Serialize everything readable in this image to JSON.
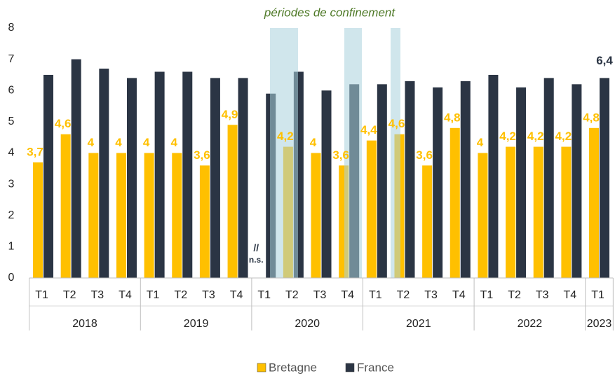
{
  "chart_data": {
    "type": "bar",
    "annotation": "périodes de confinement",
    "categories": [
      {
        "quarter": "T1",
        "year": "2018"
      },
      {
        "quarter": "T2",
        "year": null
      },
      {
        "quarter": "T3",
        "year": null
      },
      {
        "quarter": "T4",
        "year": null
      },
      {
        "quarter": "T1",
        "year": "2019"
      },
      {
        "quarter": "T2",
        "year": null
      },
      {
        "quarter": "T3",
        "year": null
      },
      {
        "quarter": "T4",
        "year": null
      },
      {
        "quarter": "T1",
        "year": "2020"
      },
      {
        "quarter": "T2",
        "year": null
      },
      {
        "quarter": "T3",
        "year": null
      },
      {
        "quarter": "T4",
        "year": null
      },
      {
        "quarter": "T1",
        "year": "2021"
      },
      {
        "quarter": "T2",
        "year": null
      },
      {
        "quarter": "T3",
        "year": null
      },
      {
        "quarter": "T4",
        "year": null
      },
      {
        "quarter": "T1",
        "year": "2022"
      },
      {
        "quarter": "T2",
        "year": null
      },
      {
        "quarter": "T3",
        "year": null
      },
      {
        "quarter": "T4",
        "year": null
      },
      {
        "quarter": "T1",
        "year": "2023"
      }
    ],
    "series": [
      {
        "name": "Bretagne",
        "color": "#ffc000",
        "values": [
          3.7,
          4.6,
          4,
          4,
          4,
          4,
          3.6,
          4.9,
          null,
          4.2,
          4,
          3.6,
          4.4,
          4.6,
          3.6,
          4.8,
          4,
          4.2,
          4.2,
          4.2,
          4.8
        ],
        "value_labels": [
          "3,7",
          "4,6",
          "4",
          "4",
          "4",
          "4",
          "3,6",
          "4,9",
          [
            "//",
            "n.s."
          ],
          "4,2",
          "4",
          "3,6",
          "4,4",
          "4,6",
          "3,6",
          "4,8",
          "4",
          "4,2",
          "4,2",
          "4,2",
          "4,8"
        ]
      },
      {
        "name": "France",
        "color": "#2b3544",
        "values": [
          6.5,
          7.0,
          6.7,
          6.4,
          6.6,
          6.6,
          6.4,
          6.4,
          5.9,
          6.6,
          6.0,
          6.2,
          6.2,
          6.3,
          6.1,
          6.3,
          6.5,
          6.1,
          6.4,
          6.2,
          6.4
        ],
        "value_labels": [
          null,
          null,
          null,
          null,
          null,
          null,
          null,
          null,
          null,
          null,
          null,
          null,
          null,
          null,
          null,
          null,
          null,
          null,
          null,
          null,
          "6,4"
        ]
      }
    ],
    "ylim": [
      0,
      8
    ],
    "yticks": [
      0,
      1,
      2,
      3,
      4,
      5,
      6,
      7,
      8
    ],
    "grid": false,
    "legend": "bottom"
  }
}
